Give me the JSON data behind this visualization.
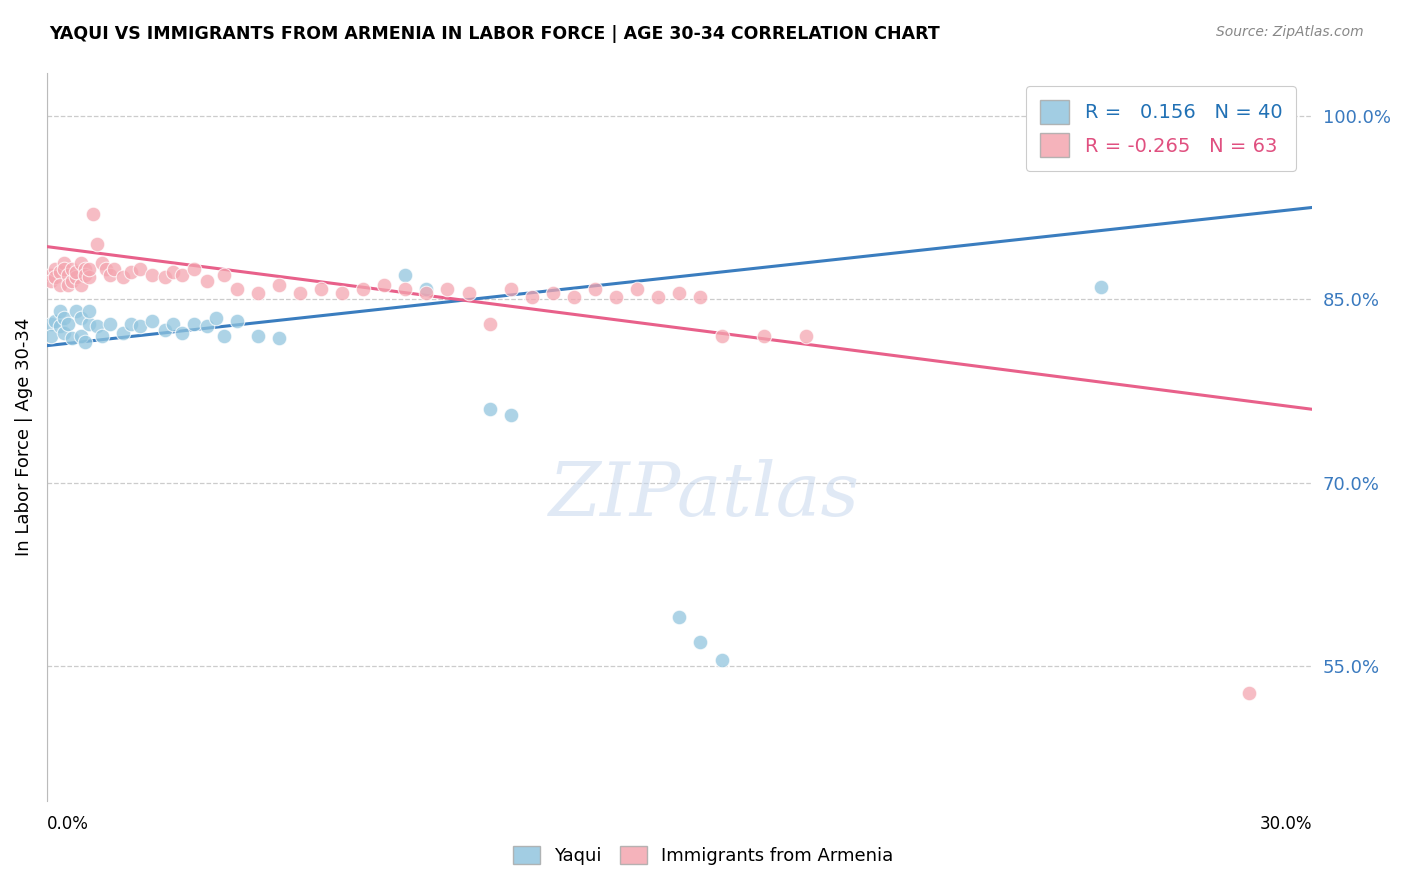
{
  "title": "YAQUI VS IMMIGRANTS FROM ARMENIA IN LABOR FORCE | AGE 30-34 CORRELATION CHART",
  "source": "Source: ZipAtlas.com",
  "ylabel": "In Labor Force | Age 30-34",
  "xlim": [
    0.0,
    0.3
  ],
  "ylim": [
    0.44,
    1.035
  ],
  "yticks": [
    0.55,
    0.7,
    0.85,
    1.0
  ],
  "ytick_labels": [
    "55.0%",
    "70.0%",
    "85.0%",
    "100.0%"
  ],
  "blue_R": 0.156,
  "blue_N": 40,
  "pink_R": -0.265,
  "pink_N": 63,
  "blue_color": "#92c5de",
  "pink_color": "#f4a6b0",
  "blue_line_color": "#3a7dbf",
  "pink_line_color": "#e8608a",
  "grid_color": "#cccccc",
  "blue_line_y0": 0.812,
  "blue_line_y1": 0.925,
  "pink_line_y0": 0.893,
  "pink_line_y1": 0.76,
  "blue_scatter_x": [
    0.001,
    0.001,
    0.002,
    0.003,
    0.003,
    0.004,
    0.004,
    0.005,
    0.006,
    0.007,
    0.008,
    0.008,
    0.009,
    0.01,
    0.01,
    0.012,
    0.013,
    0.015,
    0.018,
    0.02,
    0.022,
    0.025,
    0.028,
    0.03,
    0.032,
    0.035,
    0.038,
    0.04,
    0.042,
    0.045,
    0.05,
    0.055,
    0.085,
    0.09,
    0.105,
    0.11,
    0.15,
    0.155,
    0.16,
    0.25
  ],
  "blue_scatter_y": [
    0.83,
    0.82,
    0.832,
    0.828,
    0.84,
    0.835,
    0.822,
    0.83,
    0.818,
    0.84,
    0.835,
    0.82,
    0.815,
    0.83,
    0.84,
    0.828,
    0.82,
    0.83,
    0.822,
    0.83,
    0.828,
    0.832,
    0.825,
    0.83,
    0.822,
    0.83,
    0.828,
    0.835,
    0.82,
    0.832,
    0.82,
    0.818,
    0.87,
    0.858,
    0.76,
    0.755,
    0.59,
    0.57,
    0.555,
    0.86
  ],
  "pink_scatter_x": [
    0.001,
    0.001,
    0.002,
    0.002,
    0.003,
    0.003,
    0.004,
    0.004,
    0.005,
    0.005,
    0.006,
    0.006,
    0.007,
    0.007,
    0.008,
    0.008,
    0.009,
    0.009,
    0.01,
    0.01,
    0.011,
    0.012,
    0.013,
    0.014,
    0.015,
    0.016,
    0.018,
    0.02,
    0.022,
    0.025,
    0.028,
    0.03,
    0.032,
    0.035,
    0.038,
    0.042,
    0.045,
    0.05,
    0.055,
    0.06,
    0.065,
    0.07,
    0.075,
    0.08,
    0.085,
    0.09,
    0.095,
    0.1,
    0.105,
    0.11,
    0.115,
    0.12,
    0.125,
    0.13,
    0.135,
    0.14,
    0.145,
    0.15,
    0.155,
    0.16,
    0.17,
    0.18,
    0.285
  ],
  "pink_scatter_y": [
    0.87,
    0.865,
    0.875,
    0.868,
    0.872,
    0.862,
    0.88,
    0.875,
    0.87,
    0.862,
    0.865,
    0.875,
    0.868,
    0.872,
    0.88,
    0.862,
    0.875,
    0.87,
    0.868,
    0.875,
    0.92,
    0.895,
    0.88,
    0.875,
    0.87,
    0.875,
    0.868,
    0.872,
    0.875,
    0.87,
    0.868,
    0.872,
    0.87,
    0.875,
    0.865,
    0.87,
    0.858,
    0.855,
    0.862,
    0.855,
    0.858,
    0.855,
    0.858,
    0.862,
    0.858,
    0.855,
    0.858,
    0.855,
    0.83,
    0.858,
    0.852,
    0.855,
    0.852,
    0.858,
    0.852,
    0.858,
    0.852,
    0.855,
    0.852,
    0.82,
    0.82,
    0.82,
    0.528
  ]
}
